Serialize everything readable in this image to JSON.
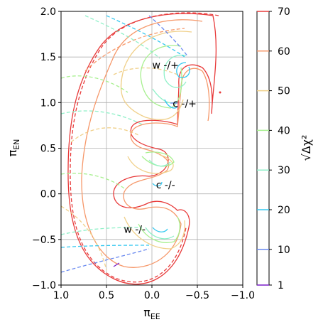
{
  "chart_data": {
    "type": "contour",
    "title": "",
    "xlabel": "π",
    "xlabel_sub": "EE",
    "ylabel": "π",
    "ylabel_sub": "EN",
    "xlim": [
      1.0,
      -1.0
    ],
    "ylim": [
      -1.0,
      2.0
    ],
    "x_ticks": [
      1.0,
      0.5,
      0.0,
      -0.5,
      -1.0
    ],
    "x_tick_labels": [
      "1.0",
      "0.5",
      "0.0",
      "−0.5",
      "−1.0"
    ],
    "y_ticks": [
      -1.0,
      -0.5,
      0.0,
      0.5,
      1.0,
      1.5,
      2.0
    ],
    "y_tick_labels": [
      "−1.0",
      "−0.5",
      "0.0",
      "0.5",
      "1.0",
      "1.5",
      "2.0"
    ],
    "grid": true,
    "colorbar": {
      "label": "√Δχ²",
      "ticks": [
        1,
        10,
        20,
        30,
        40,
        50,
        60,
        70
      ],
      "tick_labels": [
        "1",
        "10",
        "20",
        "30",
        "40",
        "50",
        "60",
        "70"
      ],
      "colors": {
        "1": "#7a1ec8",
        "10": "#6a8af0",
        "20": "#35c8f0",
        "30": "#8ff0c8",
        "40": "#a8f090",
        "50": "#f0d08a",
        "60": "#f6986a",
        "70": "#e83a3a"
      }
    },
    "annotations": [
      {
        "text": "w -/+",
        "x": -0.15,
        "y": 1.41
      },
      {
        "text": "c -/+",
        "x": -0.36,
        "y": 0.99
      },
      {
        "text": "c -/-",
        "x": -0.15,
        "y": 0.1
      },
      {
        "text": "w -/-",
        "x": 0.19,
        "y": -0.39
      }
    ],
    "minima": [
      {
        "label": "w -/+",
        "x": -0.39,
        "y": 1.42
      },
      {
        "label": "c -/+",
        "x": -0.24,
        "y": 0.99
      },
      {
        "label": "c -/-",
        "x": -0.04,
        "y": 0.11
      },
      {
        "label": "w -/-",
        "x": -0.03,
        "y": -0.4
      }
    ]
  }
}
